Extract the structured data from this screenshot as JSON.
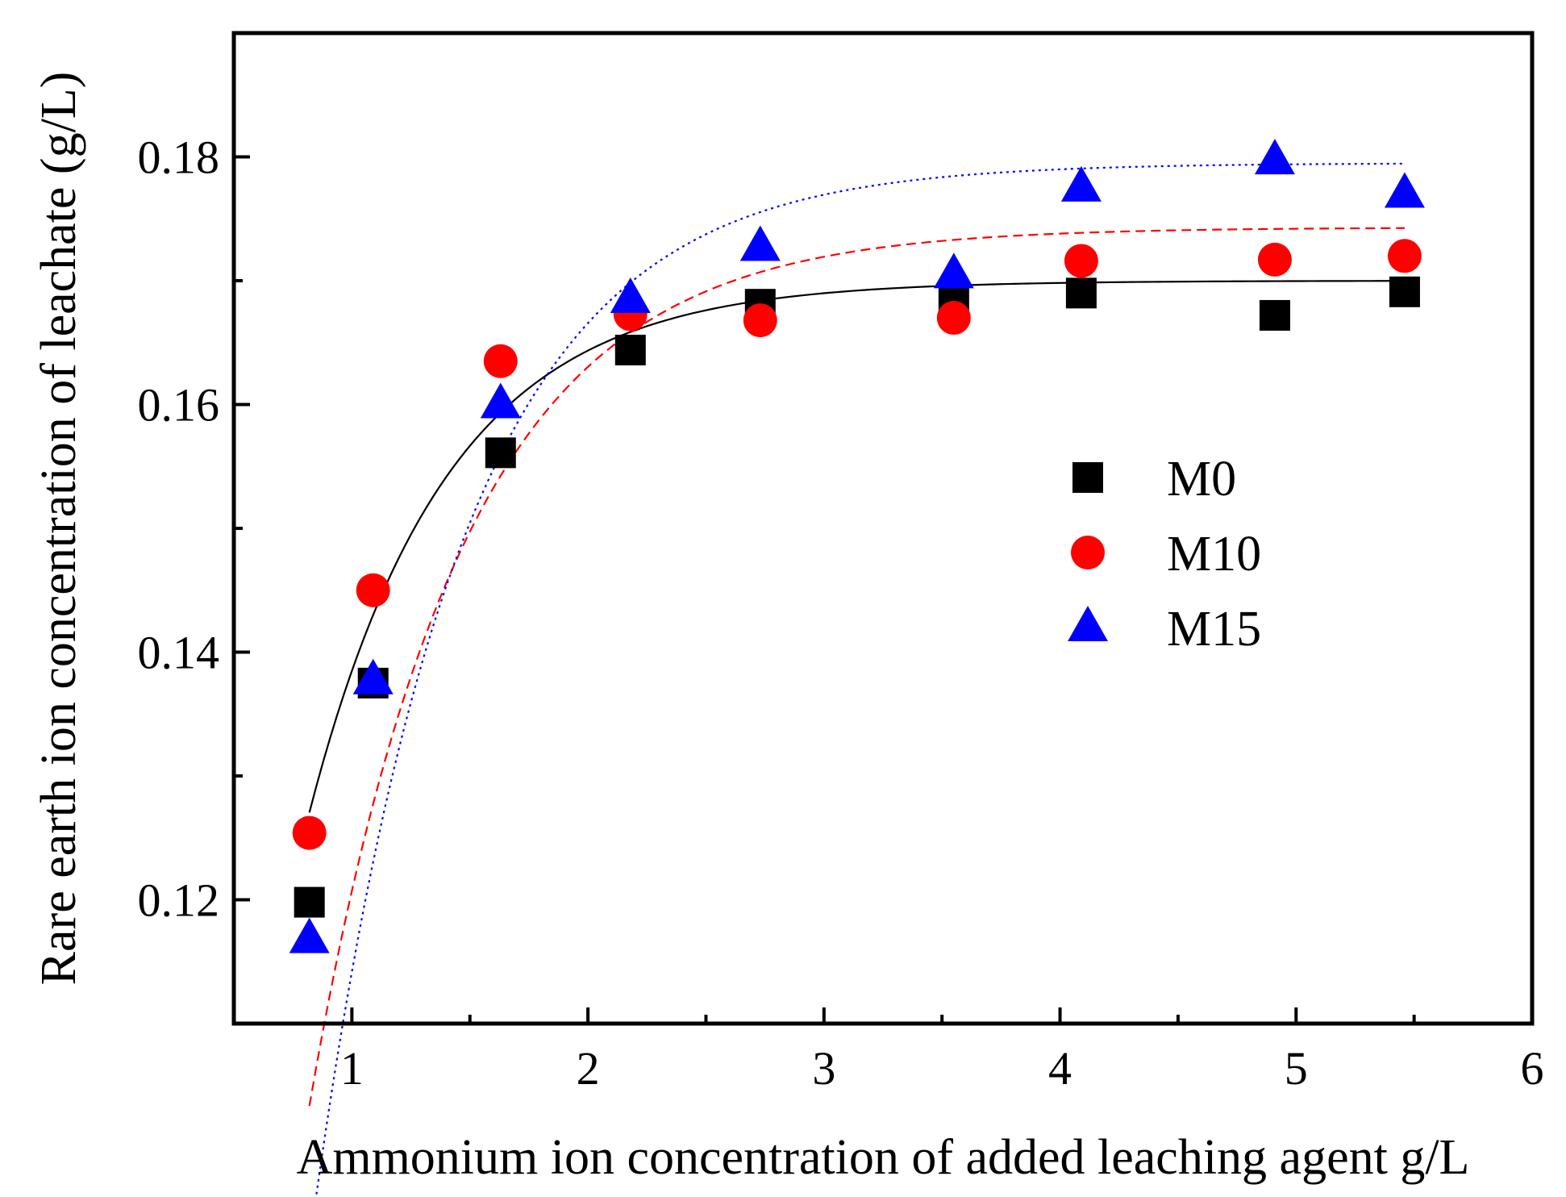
{
  "chart_data": {
    "type": "scatter",
    "title": "",
    "xlabel": "Ammonium ion concentration of added leaching agent g/L",
    "ylabel": "Rare earth ion concentration of leachate (g/L)",
    "xlim": [
      0.5,
      6
    ],
    "ylim": [
      0.11,
      0.19
    ],
    "x_ticks": [
      {
        "value": 1,
        "label": "1"
      },
      {
        "value": 2,
        "label": "2"
      },
      {
        "value": 3,
        "label": "3"
      },
      {
        "value": 4,
        "label": "4"
      },
      {
        "value": 5,
        "label": "5"
      },
      {
        "value": 6,
        "label": "6"
      }
    ],
    "x_minor_ticks": [
      1.5,
      2.5,
      3.5,
      4.5,
      5.5
    ],
    "y_ticks": [
      {
        "value": 0.12,
        "label": "0.12"
      },
      {
        "value": 0.14,
        "label": "0.14"
      },
      {
        "value": 0.16,
        "label": "0.16"
      },
      {
        "value": 0.18,
        "label": "0.18"
      }
    ],
    "y_minor_ticks": [
      0.13,
      0.15,
      0.17
    ],
    "grid": false,
    "legend_position": "right-center",
    "series": [
      {
        "name": "M0",
        "marker": "square",
        "color": "#000000",
        "fit_line": "solid",
        "x": [
          0.82,
          1.09,
          1.63,
          2.18,
          2.73,
          3.55,
          4.09,
          4.91,
          5.46
        ],
        "y": [
          0.1198,
          0.1375,
          0.1561,
          0.1644,
          0.1681,
          0.1685,
          0.169,
          0.1672,
          0.1691
        ],
        "fit": {
          "a": 0.17,
          "b": 0.176,
          "k": 1.72
        }
      },
      {
        "name": "M10",
        "marker": "circle",
        "color": "#ff0000",
        "fit_line": "dashed",
        "x": [
          0.82,
          1.09,
          1.63,
          2.18,
          2.73,
          3.55,
          4.09,
          4.91,
          5.46
        ],
        "y": [
          0.1254,
          0.145,
          0.1635,
          0.1673,
          0.1668,
          0.167,
          0.1716,
          0.1717,
          0.172
        ],
        "fit": {
          "a": 0.1743,
          "b": 0.255,
          "k": 1.56
        }
      },
      {
        "name": "M15",
        "marker": "triangle",
        "color": "#0000ff",
        "fit_line": "dotted",
        "x": [
          0.82,
          1.09,
          1.63,
          2.18,
          2.73,
          3.55,
          4.09,
          4.91,
          5.46
        ],
        "y": [
          0.1168,
          0.1377,
          0.16,
          0.1685,
          0.1727,
          0.1705,
          0.1775,
          0.1797,
          0.177
        ],
        "fit": {
          "a": 0.1795,
          "b": 0.33,
          "k": 1.62
        }
      }
    ]
  }
}
